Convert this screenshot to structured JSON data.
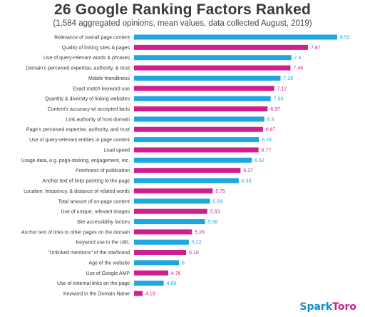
{
  "chart_data": {
    "type": "bar",
    "orientation": "horizontal",
    "title": "26 Google Ranking Factors Ranked",
    "subtitle": "(1,584 aggregated opinions, mean values, data collected August, 2019)",
    "xlim": [
      4,
      8.6
    ],
    "grid": false,
    "colors": [
      "#1ea6e0",
      "#d01e8d"
    ],
    "categories": [
      "Relevance of overall page content",
      "Quality of linking sites & pages",
      "Use of query-relevant words & phrases",
      "Domain's perceived expertise, authority, & trust",
      "Mobile friendliness",
      "Exact match keyword use",
      "Quantity & diversity of linking websites",
      "Content's accuracy w/ accepted facts",
      "Link authority of host domain",
      "Page's perceived expertise, authority, and trust",
      "Use of query-relevant entities in page content",
      "Load speed",
      "Usage data, e.g. pogo-sticking, engagement, etc.",
      "Freshness of publication",
      "Anchor text of links pointing to the page",
      "Location, frequency, & distance of related words",
      "Total amount of on-page content",
      "Use of unique, relevant images",
      "Site accessibility factors",
      "Anchor text of links to other pages on the domain",
      "Keyword use in the URL",
      "\"Unlinked mentions\" of the site/brand",
      "Age of the website",
      "Use of Google AMP",
      "Use of external links on the page",
      "Keyword in the Domain Name"
    ],
    "values": [
      8.52,
      7.87,
      7.5,
      7.48,
      7.26,
      7.12,
      7.04,
      6.97,
      6.9,
      6.87,
      6.78,
      6.77,
      6.62,
      6.37,
      6.33,
      5.75,
      5.69,
      5.63,
      5.58,
      5.29,
      5.22,
      5.16,
      5,
      4.76,
      4.66,
      4.19
    ],
    "value_labels": [
      "8.52",
      "7.87",
      "7.5",
      "7.48",
      "7.26",
      "7.12",
      "7.04",
      "6.97",
      "6.9",
      "6.87",
      "6.78",
      "6.77",
      "6.62",
      "6.37",
      "6.33",
      "5.75",
      "5.69",
      "5.63",
      "5.58",
      "5.29",
      "5.22",
      "5.16",
      "5",
      "4.76",
      "4.66",
      "4.19"
    ]
  },
  "brand": {
    "spark": "Spark",
    "toro": "Toro"
  }
}
